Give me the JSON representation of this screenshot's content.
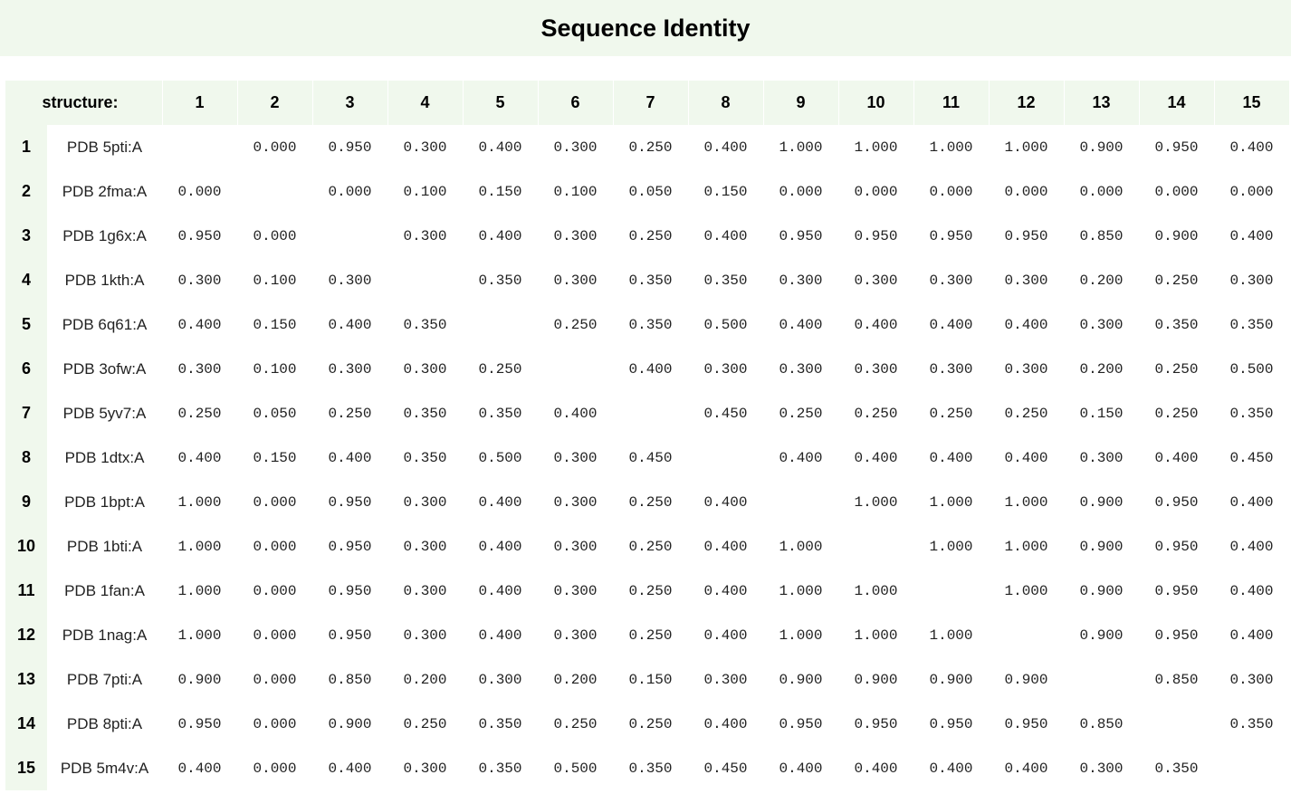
{
  "title": "Sequence Identity",
  "header": {
    "corner_label": "structure:",
    "columns": [
      "1",
      "2",
      "3",
      "4",
      "5",
      "6",
      "7",
      "8",
      "9",
      "10",
      "11",
      "12",
      "13",
      "14",
      "15"
    ]
  },
  "rows": [
    {
      "num": "1",
      "label": "PDB 5pti:A",
      "values": [
        "",
        "0.000",
        "0.950",
        "0.300",
        "0.400",
        "0.300",
        "0.250",
        "0.400",
        "1.000",
        "1.000",
        "1.000",
        "1.000",
        "0.900",
        "0.950",
        "0.400"
      ]
    },
    {
      "num": "2",
      "label": "PDB 2fma:A",
      "values": [
        "0.000",
        "",
        "0.000",
        "0.100",
        "0.150",
        "0.100",
        "0.050",
        "0.150",
        "0.000",
        "0.000",
        "0.000",
        "0.000",
        "0.000",
        "0.000",
        "0.000"
      ]
    },
    {
      "num": "3",
      "label": "PDB 1g6x:A",
      "values": [
        "0.950",
        "0.000",
        "",
        "0.300",
        "0.400",
        "0.300",
        "0.250",
        "0.400",
        "0.950",
        "0.950",
        "0.950",
        "0.950",
        "0.850",
        "0.900",
        "0.400"
      ]
    },
    {
      "num": "4",
      "label": "PDB 1kth:A",
      "values": [
        "0.300",
        "0.100",
        "0.300",
        "",
        "0.350",
        "0.300",
        "0.350",
        "0.350",
        "0.300",
        "0.300",
        "0.300",
        "0.300",
        "0.200",
        "0.250",
        "0.300"
      ]
    },
    {
      "num": "5",
      "label": "PDB 6q61:A",
      "values": [
        "0.400",
        "0.150",
        "0.400",
        "0.350",
        "",
        "0.250",
        "0.350",
        "0.500",
        "0.400",
        "0.400",
        "0.400",
        "0.400",
        "0.300",
        "0.350",
        "0.350"
      ]
    },
    {
      "num": "6",
      "label": "PDB 3ofw:A",
      "values": [
        "0.300",
        "0.100",
        "0.300",
        "0.300",
        "0.250",
        "",
        "0.400",
        "0.300",
        "0.300",
        "0.300",
        "0.300",
        "0.300",
        "0.200",
        "0.250",
        "0.500"
      ]
    },
    {
      "num": "7",
      "label": "PDB 5yv7:A",
      "values": [
        "0.250",
        "0.050",
        "0.250",
        "0.350",
        "0.350",
        "0.400",
        "",
        "0.450",
        "0.250",
        "0.250",
        "0.250",
        "0.250",
        "0.150",
        "0.250",
        "0.350"
      ]
    },
    {
      "num": "8",
      "label": "PDB 1dtx:A",
      "values": [
        "0.400",
        "0.150",
        "0.400",
        "0.350",
        "0.500",
        "0.300",
        "0.450",
        "",
        "0.400",
        "0.400",
        "0.400",
        "0.400",
        "0.300",
        "0.400",
        "0.450"
      ]
    },
    {
      "num": "9",
      "label": "PDB 1bpt:A",
      "values": [
        "1.000",
        "0.000",
        "0.950",
        "0.300",
        "0.400",
        "0.300",
        "0.250",
        "0.400",
        "",
        "1.000",
        "1.000",
        "1.000",
        "0.900",
        "0.950",
        "0.400"
      ]
    },
    {
      "num": "10",
      "label": "PDB 1bti:A",
      "values": [
        "1.000",
        "0.000",
        "0.950",
        "0.300",
        "0.400",
        "0.300",
        "0.250",
        "0.400",
        "1.000",
        "",
        "1.000",
        "1.000",
        "0.900",
        "0.950",
        "0.400"
      ]
    },
    {
      "num": "11",
      "label": "PDB 1fan:A",
      "values": [
        "1.000",
        "0.000",
        "0.950",
        "0.300",
        "0.400",
        "0.300",
        "0.250",
        "0.400",
        "1.000",
        "1.000",
        "",
        "1.000",
        "0.900",
        "0.950",
        "0.400"
      ]
    },
    {
      "num": "12",
      "label": "PDB 1nag:A",
      "values": [
        "1.000",
        "0.000",
        "0.950",
        "0.300",
        "0.400",
        "0.300",
        "0.250",
        "0.400",
        "1.000",
        "1.000",
        "1.000",
        "",
        "0.900",
        "0.950",
        "0.400"
      ]
    },
    {
      "num": "13",
      "label": "PDB 7pti:A",
      "values": [
        "0.900",
        "0.000",
        "0.850",
        "0.200",
        "0.300",
        "0.200",
        "0.150",
        "0.300",
        "0.900",
        "0.900",
        "0.900",
        "0.900",
        "",
        "0.850",
        "0.300"
      ]
    },
    {
      "num": "14",
      "label": "PDB 8pti:A",
      "values": [
        "0.950",
        "0.000",
        "0.900",
        "0.250",
        "0.350",
        "0.250",
        "0.250",
        "0.400",
        "0.950",
        "0.950",
        "0.950",
        "0.950",
        "0.850",
        "",
        "0.350"
      ]
    },
    {
      "num": "15",
      "label": "PDB 5m4v:A",
      "values": [
        "0.400",
        "0.000",
        "0.400",
        "0.300",
        "0.350",
        "0.500",
        "0.350",
        "0.450",
        "0.400",
        "0.400",
        "0.400",
        "0.400",
        "0.300",
        "0.350",
        ""
      ]
    }
  ],
  "colors": {
    "header_bg": "#f0f8ed",
    "text": "#222222"
  }
}
